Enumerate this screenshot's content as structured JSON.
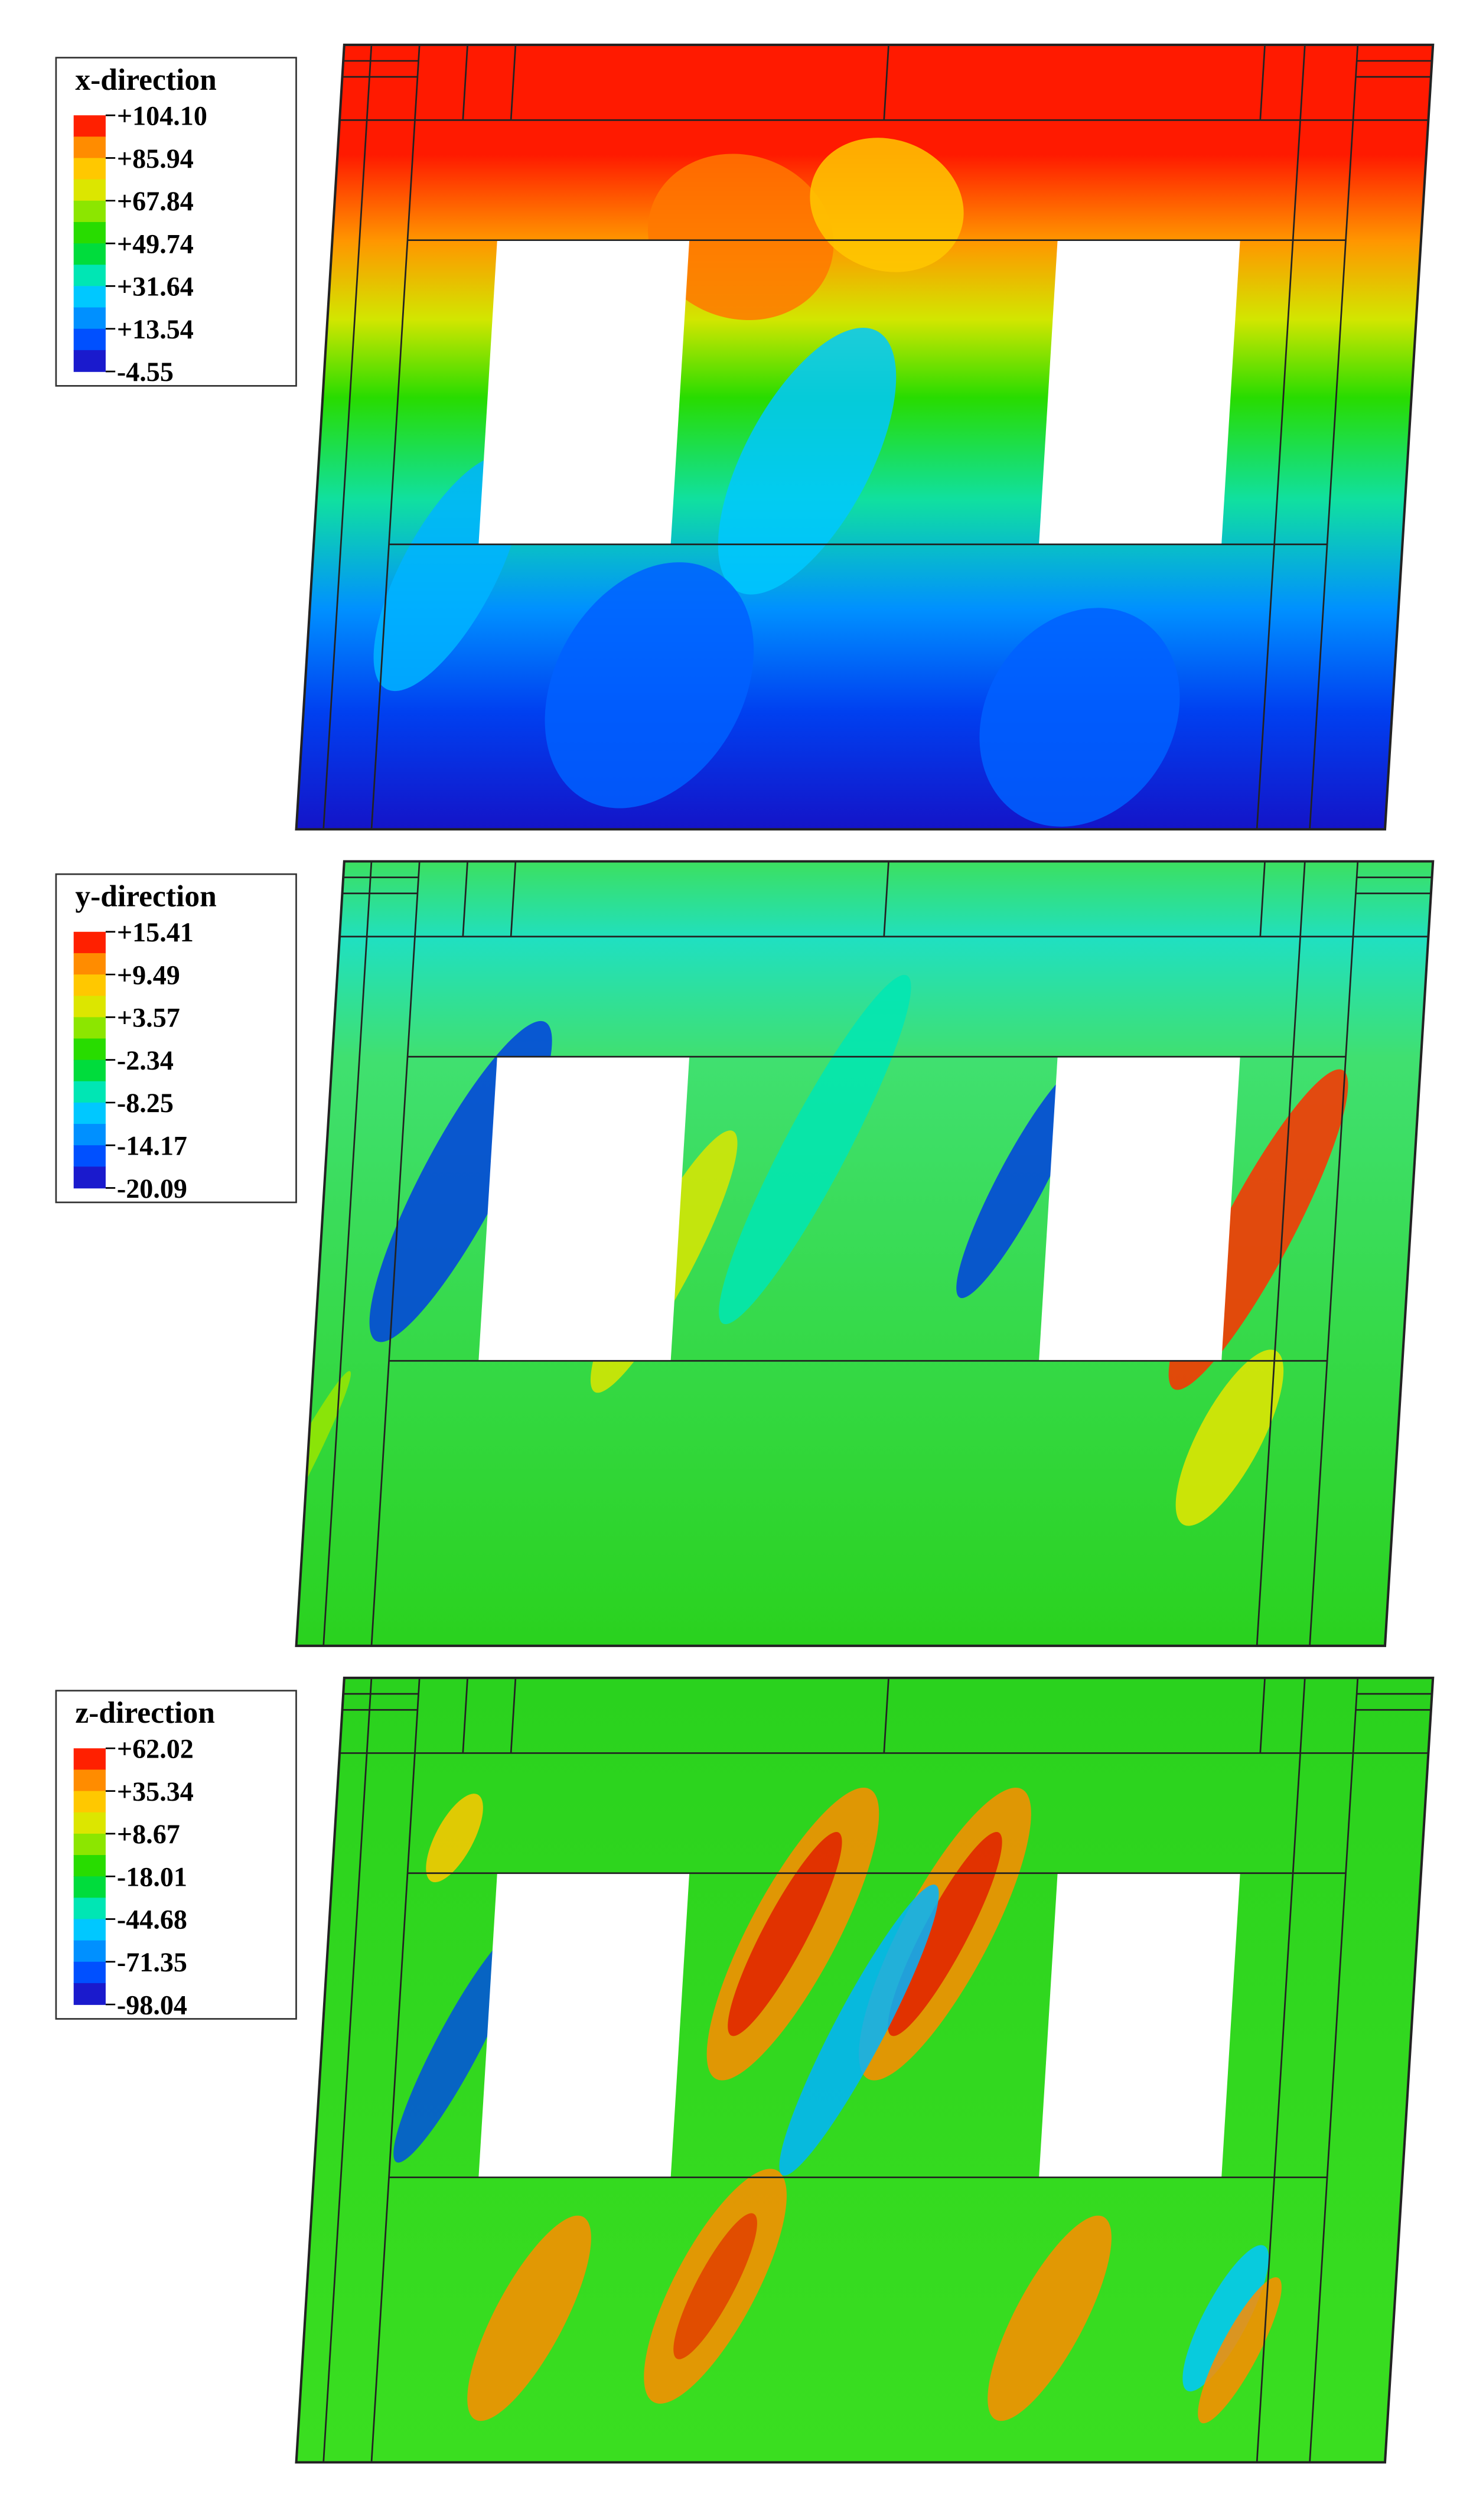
{
  "panels": [
    {
      "title": "x-direction",
      "labels": [
        "+104.10",
        "+85.94",
        "+67.84",
        "+49.74",
        "+31.64",
        "+13.54",
        "-4.55"
      ]
    },
    {
      "title": "y-direction",
      "labels": [
        "+15.41",
        "+9.49",
        "+3.57",
        "-2.34",
        "-8.25",
        "-14.17",
        "-20.09"
      ]
    },
    {
      "title": "z-direction",
      "labels": [
        "+62.02",
        "+35.34",
        "+8.67",
        "-18.01",
        "-44.68",
        "-71.35",
        "-98.04"
      ]
    }
  ]
}
